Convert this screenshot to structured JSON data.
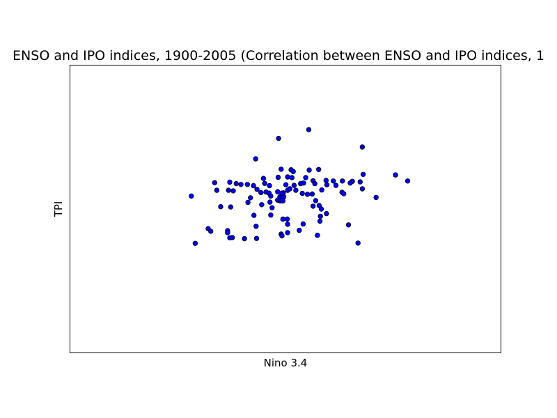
{
  "chart_data": {
    "type": "scatter",
    "title": "ENSO and IPO indices, 1900-2005 (Correlation between ENSO and IPO indices, 1",
    "xlabel": "Nino 3.4",
    "ylabel": "TPI",
    "xlim": [
      0,
      1
    ],
    "ylim": [
      0,
      1
    ],
    "grid": false,
    "ticks_visible": false,
    "marker_color": "#0000ff",
    "marker_edge": "#000000",
    "points": [
      {
        "x": 0.554,
        "y": 0.775
      },
      {
        "x": 0.484,
        "y": 0.745
      },
      {
        "x": 0.678,
        "y": 0.715
      },
      {
        "x": 0.431,
        "y": 0.674
      },
      {
        "x": 0.49,
        "y": 0.638
      },
      {
        "x": 0.513,
        "y": 0.636
      },
      {
        "x": 0.518,
        "y": 0.63
      },
      {
        "x": 0.555,
        "y": 0.635
      },
      {
        "x": 0.577,
        "y": 0.637
      },
      {
        "x": 0.68,
        "y": 0.62
      },
      {
        "x": 0.755,
        "y": 0.618
      },
      {
        "x": 0.783,
        "y": 0.597
      },
      {
        "x": 0.449,
        "y": 0.606
      },
      {
        "x": 0.483,
        "y": 0.61
      },
      {
        "x": 0.505,
        "y": 0.611
      },
      {
        "x": 0.515,
        "y": 0.609
      },
      {
        "x": 0.547,
        "y": 0.609
      },
      {
        "x": 0.564,
        "y": 0.598
      },
      {
        "x": 0.594,
        "y": 0.599
      },
      {
        "x": 0.611,
        "y": 0.597
      },
      {
        "x": 0.632,
        "y": 0.597
      },
      {
        "x": 0.655,
        "y": 0.596
      },
      {
        "x": 0.673,
        "y": 0.594
      },
      {
        "x": 0.336,
        "y": 0.591
      },
      {
        "x": 0.371,
        "y": 0.593
      },
      {
        "x": 0.386,
        "y": 0.588
      },
      {
        "x": 0.412,
        "y": 0.585
      },
      {
        "x": 0.426,
        "y": 0.581
      },
      {
        "x": 0.452,
        "y": 0.589
      },
      {
        "x": 0.463,
        "y": 0.581
      },
      {
        "x": 0.501,
        "y": 0.584
      },
      {
        "x": 0.52,
        "y": 0.582
      },
      {
        "x": 0.535,
        "y": 0.588
      },
      {
        "x": 0.542,
        "y": 0.59
      },
      {
        "x": 0.568,
        "y": 0.588
      },
      {
        "x": 0.596,
        "y": 0.584
      },
      {
        "x": 0.617,
        "y": 0.582
      },
      {
        "x": 0.65,
        "y": 0.59
      },
      {
        "x": 0.678,
        "y": 0.57
      },
      {
        "x": 0.341,
        "y": 0.565
      },
      {
        "x": 0.368,
        "y": 0.565
      },
      {
        "x": 0.379,
        "y": 0.563
      },
      {
        "x": 0.397,
        "y": 0.585
      },
      {
        "x": 0.434,
        "y": 0.568
      },
      {
        "x": 0.443,
        "y": 0.557
      },
      {
        "x": 0.455,
        "y": 0.559
      },
      {
        "x": 0.462,
        "y": 0.555
      },
      {
        "x": 0.482,
        "y": 0.56
      },
      {
        "x": 0.495,
        "y": 0.556
      },
      {
        "x": 0.505,
        "y": 0.565
      },
      {
        "x": 0.51,
        "y": 0.57
      },
      {
        "x": 0.524,
        "y": 0.565
      },
      {
        "x": 0.539,
        "y": 0.554
      },
      {
        "x": 0.551,
        "y": 0.551
      },
      {
        "x": 0.562,
        "y": 0.552
      },
      {
        "x": 0.584,
        "y": 0.566
      },
      {
        "x": 0.631,
        "y": 0.558
      },
      {
        "x": 0.635,
        "y": 0.553
      },
      {
        "x": 0.71,
        "y": 0.54
      },
      {
        "x": 0.282,
        "y": 0.545
      },
      {
        "x": 0.419,
        "y": 0.539
      },
      {
        "x": 0.466,
        "y": 0.545
      },
      {
        "x": 0.487,
        "y": 0.542
      },
      {
        "x": 0.492,
        "y": 0.548
      },
      {
        "x": 0.496,
        "y": 0.542
      },
      {
        "x": 0.492,
        "y": 0.555
      },
      {
        "x": 0.35,
        "y": 0.508
      },
      {
        "x": 0.373,
        "y": 0.507
      },
      {
        "x": 0.413,
        "y": 0.523
      },
      {
        "x": 0.445,
        "y": 0.515
      },
      {
        "x": 0.464,
        "y": 0.524
      },
      {
        "x": 0.469,
        "y": 0.504
      },
      {
        "x": 0.482,
        "y": 0.531
      },
      {
        "x": 0.488,
        "y": 0.528
      },
      {
        "x": 0.494,
        "y": 0.528
      },
      {
        "x": 0.57,
        "y": 0.529
      },
      {
        "x": 0.564,
        "y": 0.51
      },
      {
        "x": 0.578,
        "y": 0.512
      },
      {
        "x": 0.583,
        "y": 0.5
      },
      {
        "x": 0.595,
        "y": 0.484
      },
      {
        "x": 0.427,
        "y": 0.478
      },
      {
        "x": 0.466,
        "y": 0.479
      },
      {
        "x": 0.494,
        "y": 0.465
      },
      {
        "x": 0.504,
        "y": 0.465
      },
      {
        "x": 0.505,
        "y": 0.447
      },
      {
        "x": 0.58,
        "y": 0.458
      },
      {
        "x": 0.581,
        "y": 0.475
      },
      {
        "x": 0.541,
        "y": 0.448
      },
      {
        "x": 0.432,
        "y": 0.44
      },
      {
        "x": 0.321,
        "y": 0.432
      },
      {
        "x": 0.327,
        "y": 0.423
      },
      {
        "x": 0.366,
        "y": 0.425
      },
      {
        "x": 0.366,
        "y": 0.418
      },
      {
        "x": 0.49,
        "y": 0.413
      },
      {
        "x": 0.505,
        "y": 0.418
      },
      {
        "x": 0.532,
        "y": 0.426
      },
      {
        "x": 0.646,
        "y": 0.445
      },
      {
        "x": 0.371,
        "y": 0.4
      },
      {
        "x": 0.377,
        "y": 0.401
      },
      {
        "x": 0.405,
        "y": 0.397
      },
      {
        "x": 0.433,
        "y": 0.398
      },
      {
        "x": 0.492,
        "y": 0.407
      },
      {
        "x": 0.574,
        "y": 0.409
      },
      {
        "x": 0.291,
        "y": 0.381
      },
      {
        "x": 0.668,
        "y": 0.382
      }
    ]
  }
}
